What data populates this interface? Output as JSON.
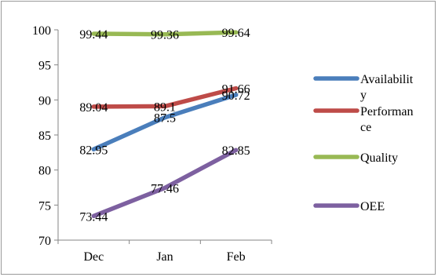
{
  "chart_data": {
    "type": "line",
    "categories": [
      "Dec",
      "Jan",
      "Feb"
    ],
    "ylim": [
      70,
      100
    ],
    "yticks": [
      70,
      75,
      80,
      85,
      90,
      95,
      100
    ],
    "grid": false,
    "legend_position": "right",
    "series": [
      {
        "name": "Availabilit\ny",
        "values": [
          82.95,
          87.5,
          90.72
        ],
        "labels": [
          "82.95",
          "87.5",
          "90.72"
        ],
        "color": "#4a7ebb"
      },
      {
        "name": "Performan\nce",
        "values": [
          89.04,
          89.1,
          91.66
        ],
        "labels": [
          "89.04",
          "89.1",
          "91.66"
        ],
        "color": "#be4b48"
      },
      {
        "name": "Quality",
        "values": [
          99.44,
          99.36,
          99.64
        ],
        "labels": [
          "99.44",
          "99.36",
          "99.64"
        ],
        "color": "#98b954"
      },
      {
        "name": "OEE",
        "values": [
          73.44,
          77.46,
          82.85
        ],
        "labels": [
          "73.44",
          "77.46",
          "82.85"
        ],
        "color": "#7d60a0"
      }
    ]
  }
}
